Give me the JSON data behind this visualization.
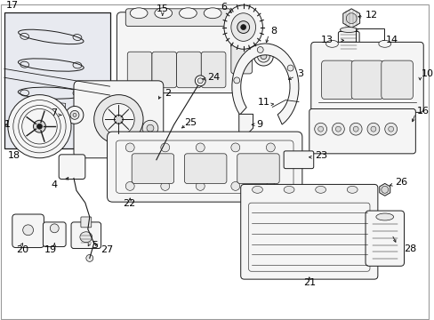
{
  "bg_color": "#ffffff",
  "line_color": "#1a1a1a",
  "text_color": "#000000",
  "fill_light": "#f5f5f5",
  "fill_mid": "#e8e8e8",
  "fill_dark": "#d8d8d8",
  "fill_box17": "#e8eaf0",
  "label_fontsize": 7,
  "figsize": [
    4.89,
    3.6
  ],
  "dpi": 100,
  "lw": 0.7
}
